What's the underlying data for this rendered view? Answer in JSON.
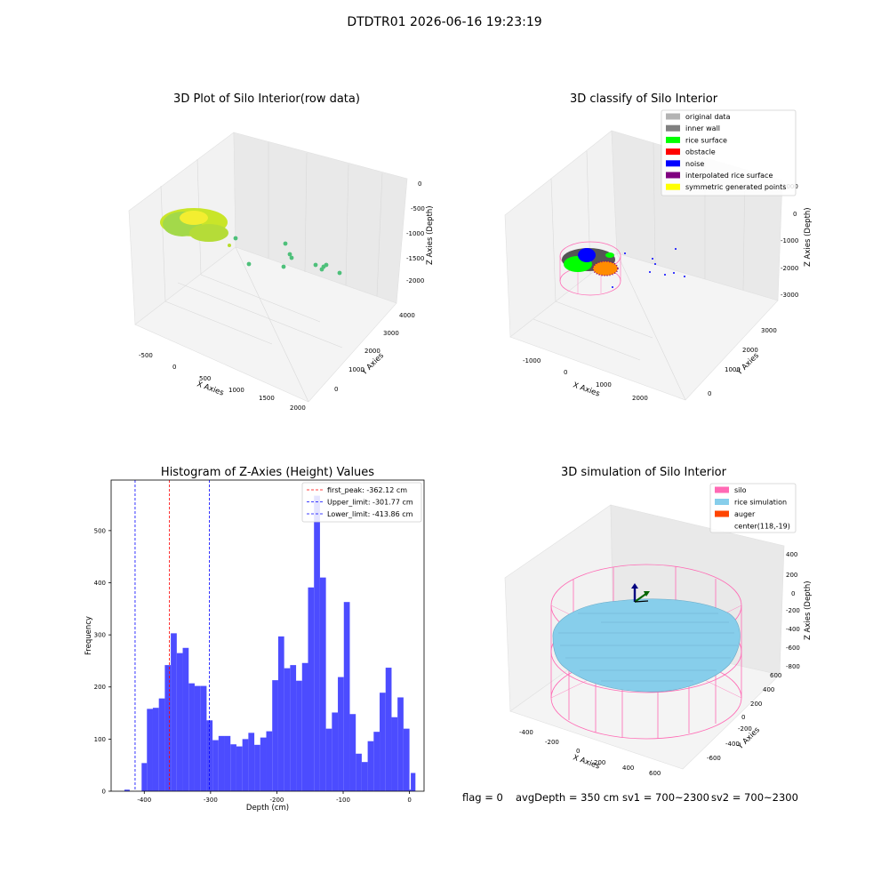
{
  "suptitle": "DTDTR01 2026-06-16 19:23:19",
  "panels": {
    "tl": {
      "title": "3D Plot of Silo Interior(row data)",
      "xlabel": "X Axies",
      "ylabel": "Y Axies",
      "zlabel": "Z Axies (Depth)",
      "xticks": [
        "-500",
        "0",
        "500",
        "1000",
        "1500",
        "2000"
      ],
      "yticks": [
        "0",
        "1000",
        "2000",
        "3000",
        "4000"
      ],
      "zticks": [
        "0",
        "-500",
        "-1000",
        "-1500",
        "-2000"
      ]
    },
    "tr": {
      "title": "3D classify of Silo Interior",
      "xlabel": "X Axies",
      "ylabel": "Y Axies",
      "zlabel": "Z Axies (Depth)",
      "xticks": [
        "-1000",
        "0",
        "1000",
        "2000"
      ],
      "yticks": [
        "0",
        "1000",
        "2000",
        "3000"
      ],
      "zticks": [
        "1000",
        "0",
        "-1000",
        "-2000",
        "-3000"
      ],
      "legend": [
        {
          "label": "original data",
          "color": "#b3b3b3"
        },
        {
          "label": "inner wall",
          "color": "#808080"
        },
        {
          "label": "rice surface",
          "color": "#00ff00"
        },
        {
          "label": "obstacle",
          "color": "#ff0000"
        },
        {
          "label": "noise",
          "color": "#0000ff"
        },
        {
          "label": "interpolated rice surface",
          "color": "#800080"
        },
        {
          "label": "symmetric generated points",
          "color": "#ffff00"
        }
      ]
    },
    "bl": {
      "title": "Histogram of Z-Axies (Height) Values",
      "legend": [
        {
          "label": "first_peak: -362.12 cm",
          "color": "#ff0000"
        },
        {
          "label": "Upper_limit: -301.77 cm",
          "color": "#0000ff"
        },
        {
          "label": "Lower_limit: -413.86 cm",
          "color": "#0000ff"
        }
      ]
    },
    "br": {
      "title": "3D simulation of Silo Interior",
      "xlabel": "X Axies",
      "ylabel": "Y Axies",
      "zlabel": "Z Axies (Depth)",
      "xticks": [
        "-400",
        "-200",
        "0",
        "200",
        "400",
        "600"
      ],
      "yticks": [
        "-600",
        "-400",
        "-200",
        "0",
        "200",
        "400",
        "600"
      ],
      "zticks": [
        "400",
        "200",
        "0",
        "-200",
        "-400",
        "-600",
        "-800"
      ],
      "legend": [
        {
          "label": "silo",
          "color": "#ff69b4"
        },
        {
          "label": "rice simulation",
          "color": "#87ceeb"
        },
        {
          "label": "auger",
          "color": "#ff4500"
        },
        {
          "label": "center(118,-19)",
          "color": ""
        }
      ]
    }
  },
  "footer": {
    "flag": "flag = 0",
    "avg": "avgDepth = 350 cm",
    "sv1": "sv1 = 700~2300",
    "sv2": "sv2 = 700~2300"
  },
  "chart_data": {
    "type": "bar",
    "title": "Histogram of Z-Axies (Height) Values",
    "xlabel": "Depth (cm)",
    "ylabel": "Frequency",
    "xlim": [
      -450,
      22
    ],
    "ylim": [
      0,
      597
    ],
    "xticks": [
      -400,
      -300,
      -200,
      -100,
      0
    ],
    "yticks": [
      0,
      100,
      200,
      300,
      400,
      500
    ],
    "bar_color": "#4c4cff",
    "bins": [
      {
        "x0": -430,
        "x1": -422,
        "count": 3
      },
      {
        "x0": -404,
        "x1": -396,
        "count": 54
      },
      {
        "x0": -396,
        "x1": -387,
        "count": 158
      },
      {
        "x0": -387,
        "x1": -378,
        "count": 160
      },
      {
        "x0": -378,
        "x1": -369,
        "count": 178
      },
      {
        "x0": -369,
        "x1": -360,
        "count": 242
      },
      {
        "x0": -360,
        "x1": -351,
        "count": 303
      },
      {
        "x0": -351,
        "x1": -342,
        "count": 265
      },
      {
        "x0": -342,
        "x1": -333,
        "count": 275
      },
      {
        "x0": -333,
        "x1": -324,
        "count": 207
      },
      {
        "x0": -324,
        "x1": -315,
        "count": 202
      },
      {
        "x0": -315,
        "x1": -306,
        "count": 202
      },
      {
        "x0": -306,
        "x1": -297,
        "count": 136
      },
      {
        "x0": -297,
        "x1": -288,
        "count": 98
      },
      {
        "x0": -288,
        "x1": -279,
        "count": 106
      },
      {
        "x0": -279,
        "x1": -270,
        "count": 106
      },
      {
        "x0": -270,
        "x1": -261,
        "count": 90
      },
      {
        "x0": -261,
        "x1": -252,
        "count": 86
      },
      {
        "x0": -252,
        "x1": -243,
        "count": 100
      },
      {
        "x0": -243,
        "x1": -234,
        "count": 112
      },
      {
        "x0": -234,
        "x1": -225,
        "count": 89
      },
      {
        "x0": -225,
        "x1": -216,
        "count": 103
      },
      {
        "x0": -216,
        "x1": -207,
        "count": 115
      },
      {
        "x0": -207,
        "x1": -198,
        "count": 213
      },
      {
        "x0": -198,
        "x1": -189,
        "count": 297
      },
      {
        "x0": -189,
        "x1": -180,
        "count": 236
      },
      {
        "x0": -180,
        "x1": -171,
        "count": 242
      },
      {
        "x0": -171,
        "x1": -162,
        "count": 212
      },
      {
        "x0": -162,
        "x1": -153,
        "count": 246
      },
      {
        "x0": -153,
        "x1": -144,
        "count": 391
      },
      {
        "x0": -144,
        "x1": -135,
        "count": 567
      },
      {
        "x0": -135,
        "x1": -126,
        "count": 410
      },
      {
        "x0": -126,
        "x1": -117,
        "count": 120
      },
      {
        "x0": -117,
        "x1": -108,
        "count": 151
      },
      {
        "x0": -108,
        "x1": -99,
        "count": 219
      },
      {
        "x0": -99,
        "x1": -90,
        "count": 363
      },
      {
        "x0": -90,
        "x1": -81,
        "count": 148
      },
      {
        "x0": -81,
        "x1": -72,
        "count": 72
      },
      {
        "x0": -72,
        "x1": -63,
        "count": 56
      },
      {
        "x0": -63,
        "x1": -54,
        "count": 96
      },
      {
        "x0": -54,
        "x1": -45,
        "count": 114
      },
      {
        "x0": -45,
        "x1": -36,
        "count": 189
      },
      {
        "x0": -36,
        "x1": -27,
        "count": 237
      },
      {
        "x0": -27,
        "x1": -18,
        "count": 142
      },
      {
        "x0": -18,
        "x1": -9,
        "count": 180
      },
      {
        "x0": -9,
        "x1": 0,
        "count": 120
      },
      {
        "x0": 0,
        "x1": 2,
        "count": 3
      },
      {
        "x0": 2,
        "x1": 9,
        "count": 35
      }
    ],
    "vlines": [
      {
        "x": -362.12,
        "color": "#ff0000",
        "label": "first_peak: -362.12 cm"
      },
      {
        "x": -301.77,
        "color": "#0000ff",
        "label": "Upper_limit: -301.77 cm"
      },
      {
        "x": -413.86,
        "color": "#0000ff",
        "label": "Lower_limit: -413.86 cm"
      }
    ]
  }
}
